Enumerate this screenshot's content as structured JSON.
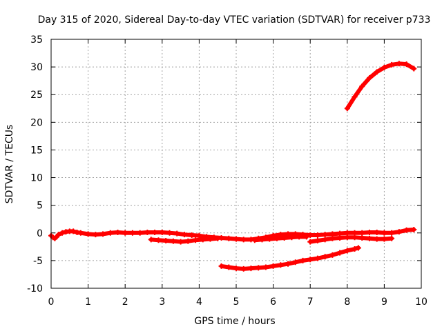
{
  "chart_data": {
    "type": "scatter",
    "title": "Day 315 of 2020, Sidereal Day-to-day VTEC variation (SDTVAR) for receiver p733",
    "xlabel": "GPS time / hours",
    "ylabel": "SDTVAR / TECUs",
    "xlim": [
      0,
      10
    ],
    "ylim": [
      -10,
      35
    ],
    "xticks": [
      "0",
      "1",
      "2",
      "3",
      "4",
      "5",
      "6",
      "7",
      "8",
      "9",
      "10"
    ],
    "yticks": [
      "-10",
      "-5",
      "0",
      "5",
      "10",
      "15",
      "20",
      "25",
      "30",
      "35"
    ],
    "grid": true,
    "legend": "none",
    "color": "#ff0000",
    "series": [
      {
        "x": [
          0.0,
          0.05,
          0.1,
          0.15,
          0.2,
          0.3,
          0.4,
          0.5,
          0.6,
          0.7,
          0.8,
          1.0,
          1.2,
          1.4,
          1.6,
          1.8,
          2.0,
          2.2,
          2.4,
          2.6,
          2.8,
          3.0,
          3.2,
          3.4,
          3.6,
          3.8,
          4.0,
          4.2,
          4.4,
          4.6,
          4.8,
          5.0,
          5.2,
          5.4,
          5.6,
          5.8,
          6.0,
          6.2,
          6.4,
          6.6,
          6.8,
          7.0,
          7.2,
          7.4,
          7.6,
          7.8,
          8.0,
          8.2,
          8.4,
          8.6,
          8.8,
          9.0,
          9.2,
          9.4,
          9.6,
          9.8
        ],
        "y": [
          -0.5,
          -0.8,
          -1.0,
          -0.7,
          -0.3,
          0.0,
          0.2,
          0.3,
          0.3,
          0.1,
          0.0,
          -0.2,
          -0.3,
          -0.2,
          0.0,
          0.1,
          0.0,
          0.0,
          0.0,
          0.1,
          0.1,
          0.1,
          0.0,
          -0.1,
          -0.3,
          -0.4,
          -0.5,
          -0.7,
          -0.8,
          -0.9,
          -1.0,
          -1.1,
          -1.2,
          -1.2,
          -1.0,
          -0.8,
          -0.5,
          -0.3,
          -0.2,
          -0.2,
          -0.3,
          -0.4,
          -0.4,
          -0.3,
          -0.2,
          -0.1,
          0.0,
          0.0,
          0.0,
          0.1,
          0.1,
          0.0,
          0.0,
          0.2,
          0.5,
          0.6
        ]
      },
      {
        "x": [
          2.7,
          2.9,
          3.1,
          3.3,
          3.5,
          3.7,
          3.9,
          4.1,
          4.3,
          4.5
        ],
        "y": [
          -1.2,
          -1.3,
          -1.4,
          -1.5,
          -1.6,
          -1.5,
          -1.3,
          -1.2,
          -1.1,
          -1.0
        ]
      },
      {
        "x": [
          5.5,
          5.7,
          5.9,
          6.1,
          6.3,
          6.5,
          6.7,
          6.9
        ],
        "y": [
          -1.3,
          -1.2,
          -1.1,
          -1.0,
          -0.9,
          -0.8,
          -0.7,
          -0.7
        ]
      },
      {
        "x": [
          7.0,
          7.2,
          7.4,
          7.6,
          7.8,
          8.0,
          8.2,
          8.4,
          8.6,
          8.8,
          9.0,
          9.2
        ],
        "y": [
          -1.6,
          -1.4,
          -1.2,
          -1.0,
          -0.9,
          -0.8,
          -0.8,
          -0.9,
          -1.0,
          -1.1,
          -1.1,
          -1.0
        ]
      },
      {
        "x": [
          4.6,
          4.8,
          5.0,
          5.2,
          5.4,
          5.6,
          5.8,
          6.0,
          6.2,
          6.4,
          6.6,
          6.8,
          7.0,
          7.2,
          7.4,
          7.6,
          7.8,
          8.0,
          8.2,
          8.3
        ],
        "y": [
          -6.0,
          -6.2,
          -6.4,
          -6.5,
          -6.4,
          -6.3,
          -6.2,
          -6.0,
          -5.8,
          -5.6,
          -5.3,
          -5.0,
          -4.8,
          -4.6,
          -4.3,
          -4.0,
          -3.6,
          -3.2,
          -2.9,
          -2.7
        ]
      },
      {
        "x": [
          8.0,
          8.2,
          8.4,
          8.6,
          8.8,
          9.0,
          9.2,
          9.4,
          9.6,
          9.8
        ],
        "y": [
          22.5,
          24.6,
          26.5,
          28.0,
          29.1,
          29.9,
          30.4,
          30.6,
          30.5,
          29.7
        ]
      }
    ]
  }
}
